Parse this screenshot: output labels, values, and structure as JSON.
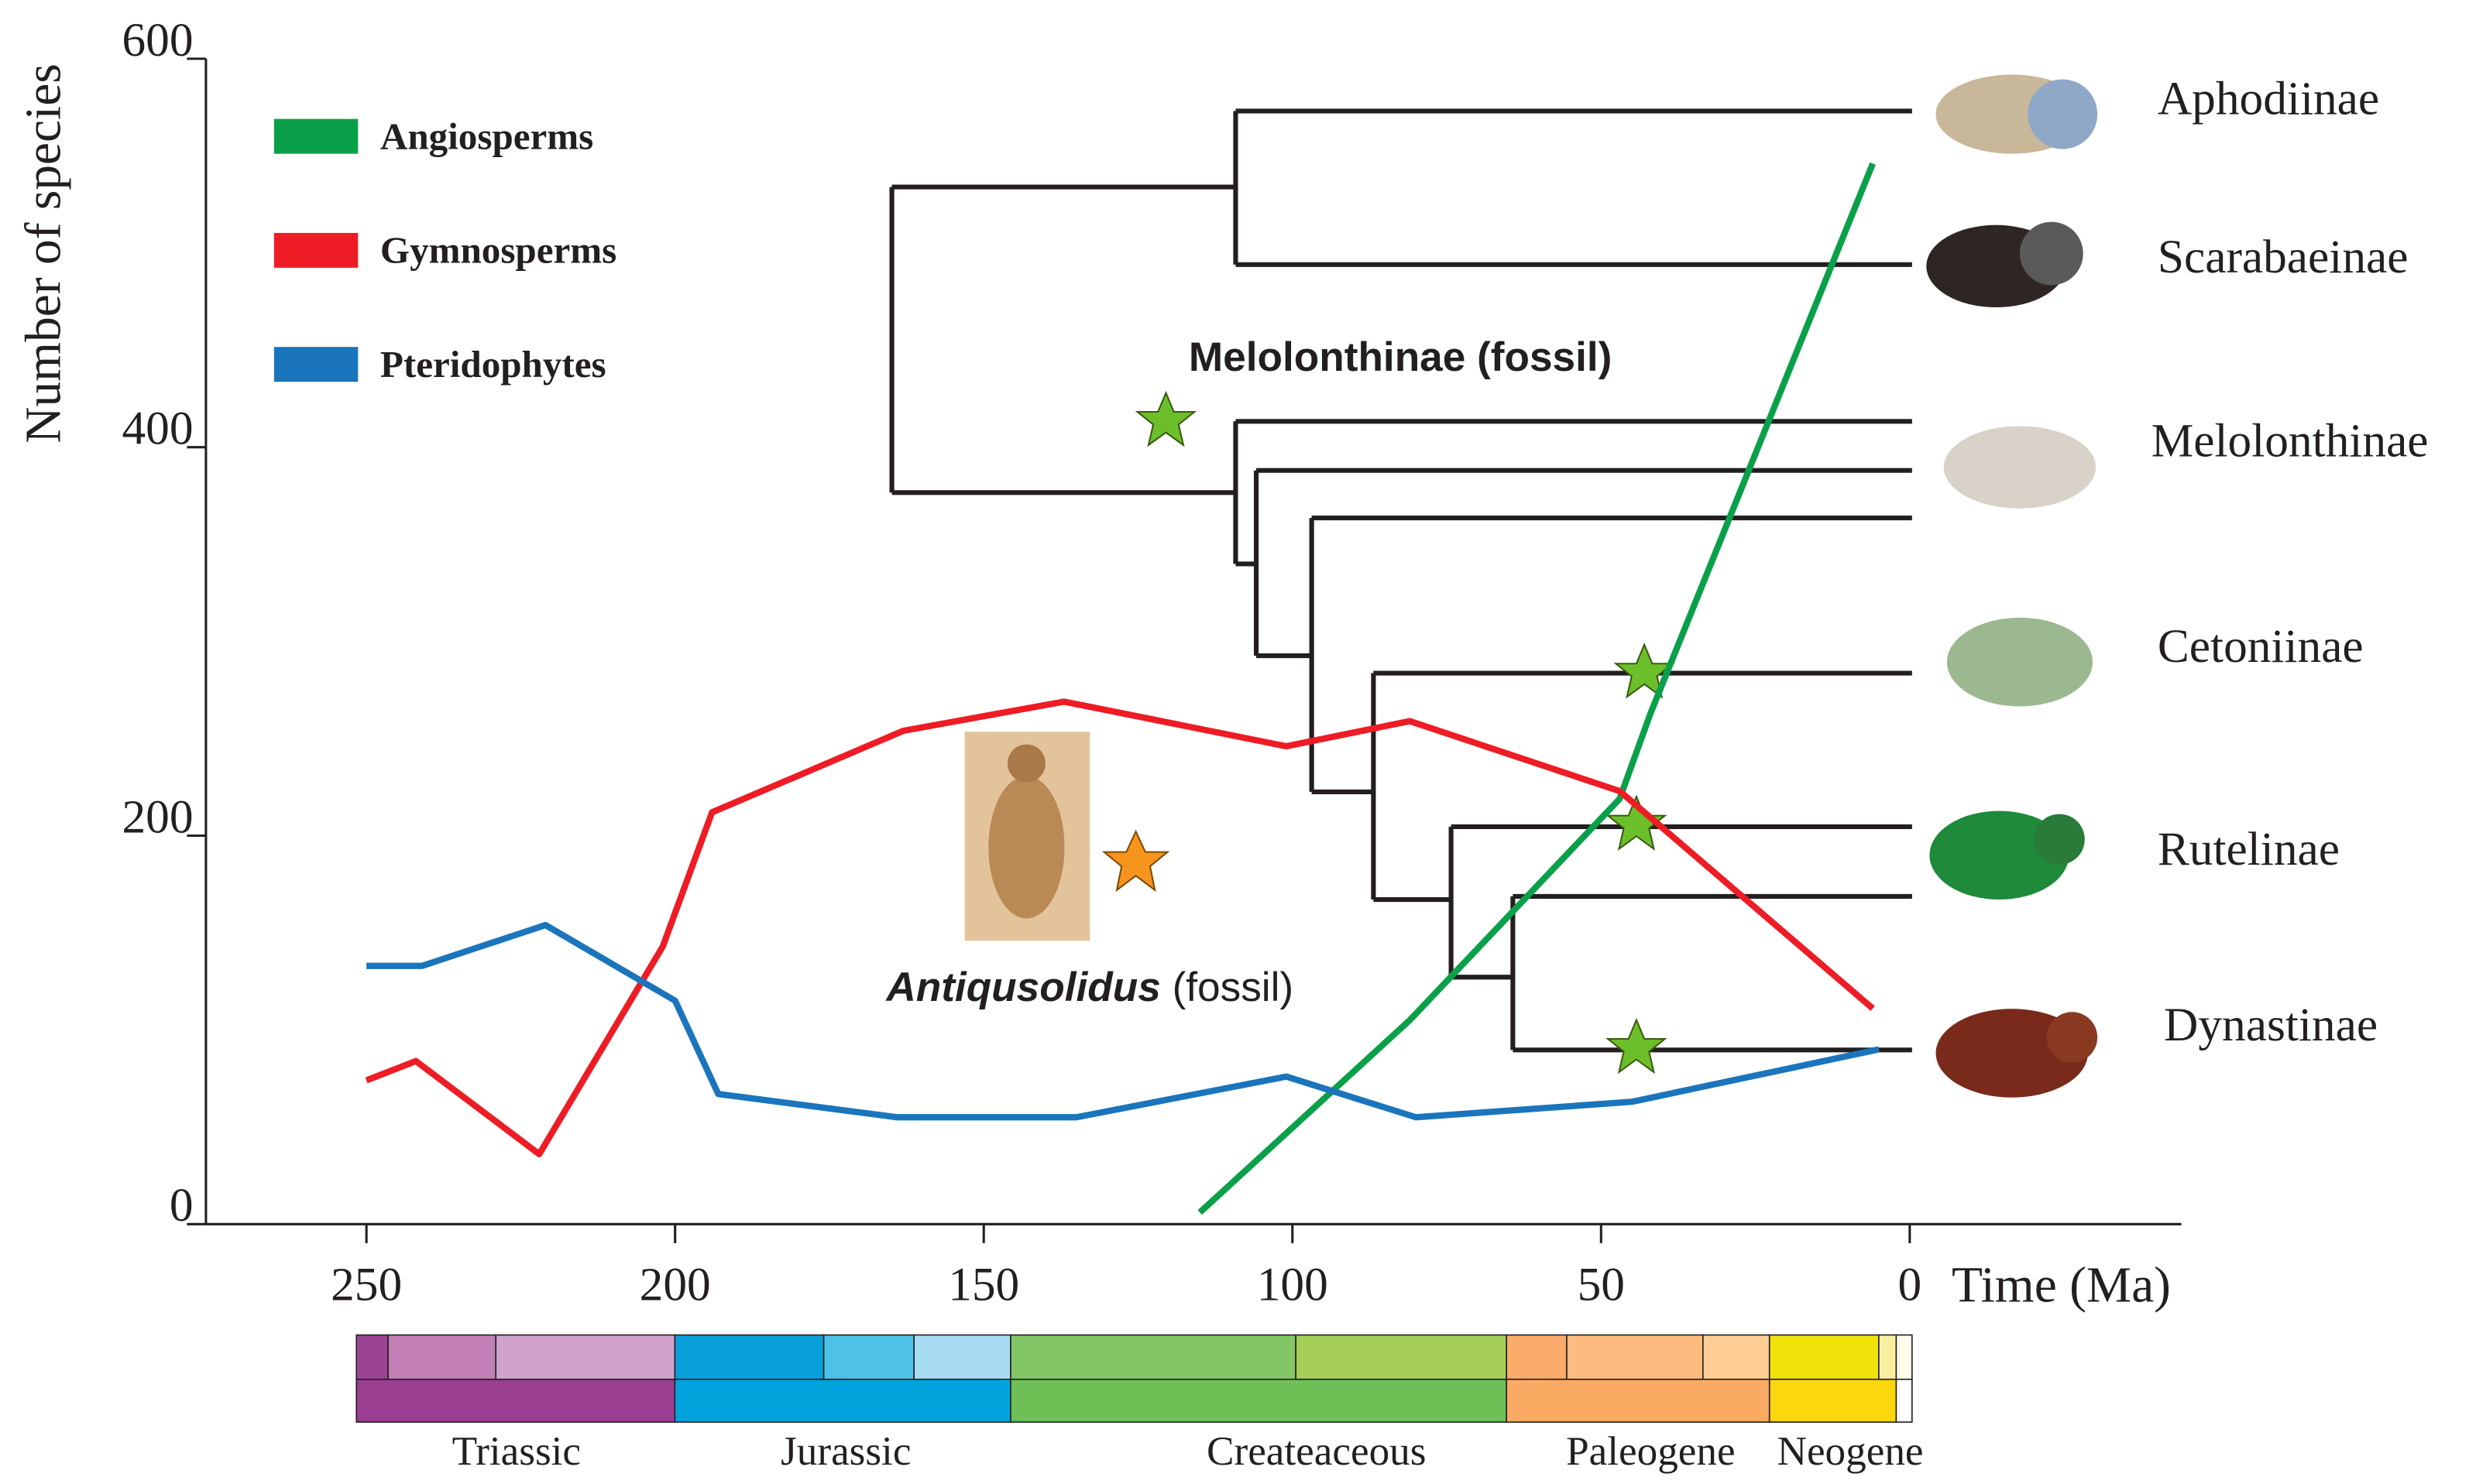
{
  "chart_data": {
    "type": "line",
    "y_label": "Number of species",
    "x_label": "Time (Ma)",
    "xlim": [
      276,
      -44
    ],
    "xticks": [
      250,
      200,
      150,
      100,
      50,
      0
    ],
    "ylim": [
      0,
      600
    ],
    "yticks": [
      0,
      200,
      400,
      600
    ],
    "legend": "upper left",
    "series": [
      {
        "name": "Angiosperms",
        "color": "#0aa04a",
        "x": [
          115,
          81,
          47,
          42,
          6
        ],
        "values": [
          6,
          105,
          219,
          263,
          546
        ]
      },
      {
        "name": "Gymnosperms",
        "color": "#ee1c25",
        "x": [
          250,
          242,
          222,
          202,
          194,
          163,
          137,
          101,
          81,
          47,
          6
        ],
        "values": [
          74,
          84,
          36,
          143,
          212,
          254,
          269,
          246,
          259,
          223,
          111
        ]
      },
      {
        "name": "Pteridophytes",
        "color": "#1b75bc",
        "x": [
          250,
          241,
          221,
          200,
          193,
          164,
          135,
          101,
          80,
          45,
          5
        ],
        "values": [
          133,
          133,
          154,
          115,
          67,
          55,
          55,
          76,
          55,
          63,
          90
        ]
      }
    ],
    "annotations": [
      "Melolonthinae (fossil)",
      "Antiqusolidus",
      "(fossil)"
    ],
    "taxa": [
      "Aphodiinae",
      "Scarabaeinae",
      "Melolonthinae",
      "Cetoniinae",
      "Rutelinae",
      "Dynastinae"
    ],
    "periods": [
      "Triassic",
      "Jurassic",
      "Createaceous",
      "Paleogene",
      "Neogene"
    ]
  }
}
